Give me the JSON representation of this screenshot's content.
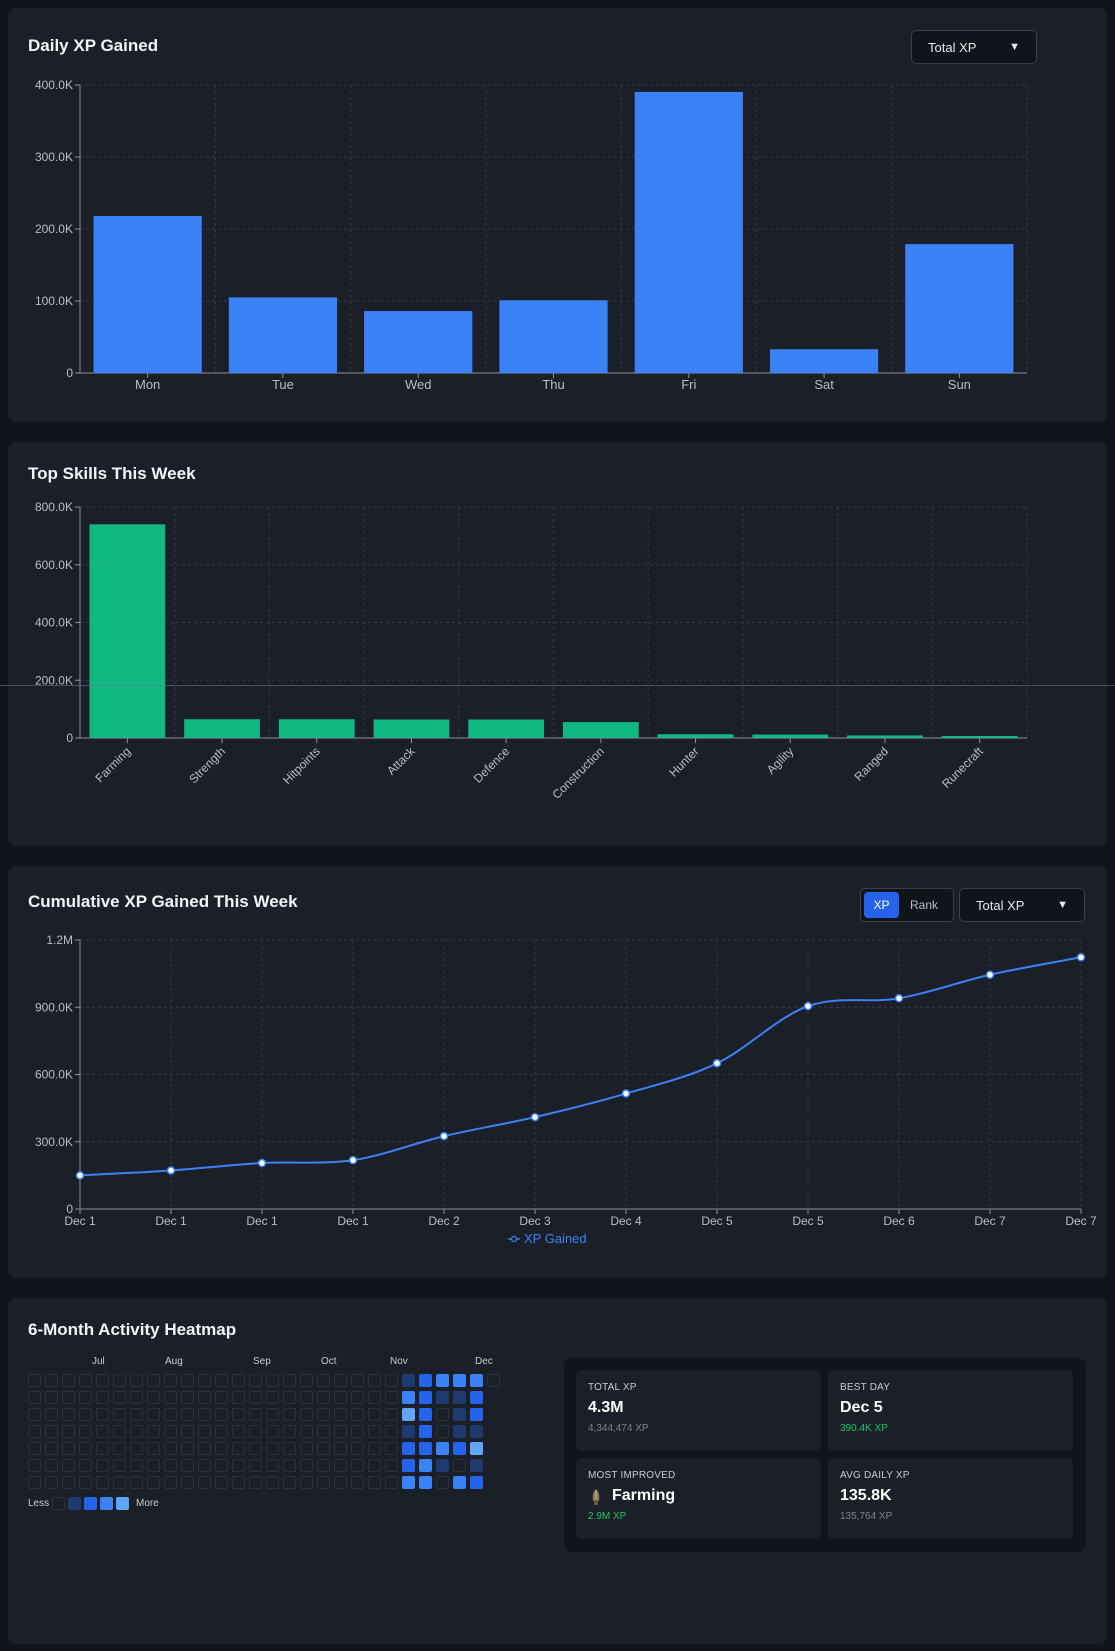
{
  "colors": {
    "blue": "#3b82f6",
    "green": "#10b981",
    "line": "#3b82f6"
  },
  "daily": {
    "title": "Daily XP Gained",
    "select": "Total XP"
  },
  "skills": {
    "title": "Top Skills This Week"
  },
  "cumulative": {
    "title": "Cumulative XP Gained This Week",
    "toggle": [
      "XP",
      "Rank"
    ],
    "select": "Total XP",
    "legend": "XP Gained"
  },
  "heatmap": {
    "title": "6-Month Activity Heatmap",
    "months": [
      "Jul",
      "Aug",
      "Sep",
      "Oct",
      "Nov",
      "Dec"
    ],
    "legend_less": "Less",
    "legend_more": "More"
  },
  "stats": {
    "total_xp": {
      "label": "TOTAL XP",
      "value": "4.3M",
      "sub": "4,344,474 XP"
    },
    "best_day": {
      "label": "BEST DAY",
      "value": "Dec 5",
      "sub": "390.4K XP"
    },
    "most_improved": {
      "label": "MOST IMPROVED",
      "value": "Farming",
      "sub": "2.9M XP",
      "icon": "farming-icon"
    },
    "avg_daily": {
      "label": "AVG DAILY XP",
      "value": "135.8K",
      "sub": "135,764 XP"
    }
  },
  "chart_data": [
    {
      "type": "bar",
      "categories": [
        "Mon",
        "Tue",
        "Wed",
        "Thu",
        "Fri",
        "Sat",
        "Sun"
      ],
      "values": [
        218000,
        105000,
        86000,
        101000,
        390400,
        33000,
        179000
      ],
      "ylim": [
        0,
        400000
      ],
      "yticks": [
        "0",
        "100.0K",
        "200.0K",
        "300.0K",
        "400.0K"
      ],
      "grid": true
    },
    {
      "type": "bar",
      "categories": [
        "Farming",
        "Strength",
        "Hitpoints",
        "Attack",
        "Defence",
        "Construction",
        "Hunter",
        "Agility",
        "Ranged",
        "Runecraft"
      ],
      "values": [
        740000,
        65000,
        65000,
        64000,
        64000,
        55000,
        13000,
        12000,
        9000,
        7000
      ],
      "ylim": [
        0,
        800000
      ],
      "yticks": [
        "0",
        "200.0K",
        "400.0K",
        "600.0K",
        "800.0K"
      ],
      "grid": true
    },
    {
      "type": "line",
      "x": [
        "Dec 1",
        "Dec 1",
        "Dec 1",
        "Dec 1",
        "Dec 2",
        "Dec 3",
        "Dec 4",
        "Dec 5",
        "Dec 5",
        "Dec 6",
        "Dec 7",
        "Dec 7"
      ],
      "series": [
        {
          "name": "XP Gained",
          "values": [
            150000,
            172000,
            205000,
            218000,
            325000,
            410000,
            515000,
            650000,
            905000,
            940000,
            1045000,
            1123000
          ]
        }
      ],
      "ylim": [
        0,
        1200000
      ],
      "yticks": [
        "0",
        "300.0K",
        "600.0K",
        "900.0K",
        "1.2M"
      ],
      "grid": true,
      "legend": "bottom-center"
    }
  ]
}
